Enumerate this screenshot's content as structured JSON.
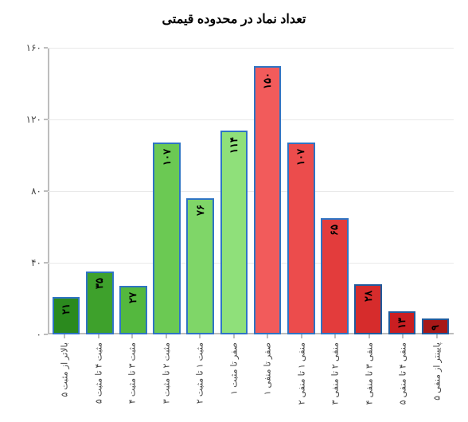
{
  "chart": {
    "type": "bar",
    "title": "تعداد نماد در محدوده قیمتی",
    "title_fontsize": 16,
    "title_color": "#000000",
    "background_color": "#ffffff",
    "axis_color": "#bdbdbd",
    "grid_color": "#e9e9e9",
    "label_color": "#444444",
    "y": {
      "min": 0,
      "max": 160,
      "ticks": [
        0,
        40,
        80,
        120,
        160
      ],
      "tick_labels": [
        "۰",
        "۴۰",
        "۸۰",
        "۱۲۰",
        "۱۶۰"
      ]
    },
    "bars": [
      {
        "category": "پایینتر از منفی ۵",
        "value": 9,
        "value_label": "۹",
        "fill": "#a81818",
        "border": "#205a9c"
      },
      {
        "category": "منفی ۴ تا منفی ۵",
        "value": 13,
        "value_label": "۱۳",
        "fill": "#ca1e21",
        "border": "#205a9c"
      },
      {
        "category": "منفی ۳ تا منفی ۴",
        "value": 28,
        "value_label": "۲۸",
        "fill": "#d62c2c",
        "border": "#205a9c"
      },
      {
        "category": "منفی ۲ تا منفی ۳",
        "value": 65,
        "value_label": "۶۵",
        "fill": "#e33c3c",
        "border": "#2f74c4"
      },
      {
        "category": "منفی ۱ تا منفی ۲",
        "value": 107,
        "value_label": "۱۰۷",
        "fill": "#ec4c4c",
        "border": "#2f74c4"
      },
      {
        "category": "صفر تا منفی ۱",
        "value": 150,
        "value_label": "۱۵۰",
        "fill": "#f25b5b",
        "border": "#2f74c4"
      },
      {
        "category": "صفر تا مثبت ۱",
        "value": 114,
        "value_label": "۱۱۴",
        "fill": "#8fe07a",
        "border": "#2f74c4"
      },
      {
        "category": "مثبت ۱ تا مثبت ۲",
        "value": 76,
        "value_label": "۷۶",
        "fill": "#7fd668",
        "border": "#2f74c4"
      },
      {
        "category": "مثبت ۲ تا مثبت ۳",
        "value": 107,
        "value_label": "۱۰۷",
        "fill": "#6bc953",
        "border": "#2f74c4"
      },
      {
        "category": "مثبت ۳ تا مثبت ۴",
        "value": 27,
        "value_label": "۲۷",
        "fill": "#54b83e",
        "border": "#2f74c4"
      },
      {
        "category": "مثبت ۴ تا مثبت ۵",
        "value": 35,
        "value_label": "۳۵",
        "fill": "#3ea12c",
        "border": "#2f74c4"
      },
      {
        "category": "بالاتر از مثبت ۵",
        "value": 21,
        "value_label": "۲۱",
        "fill": "#2b8a1e",
        "border": "#2f74c4"
      }
    ]
  }
}
